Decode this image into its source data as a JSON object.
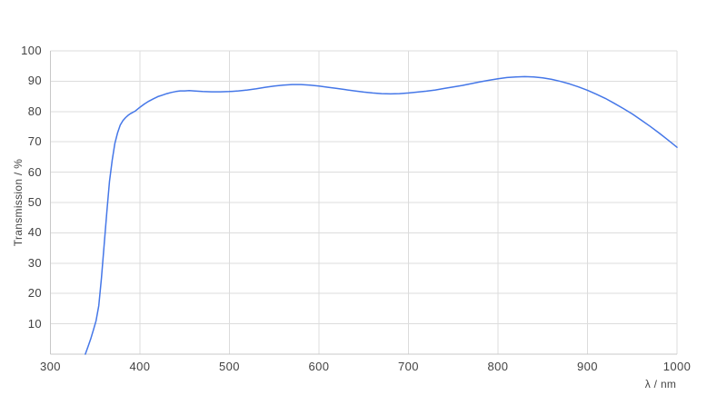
{
  "page": {
    "background": "#ffffff"
  },
  "chart_data": {
    "type": "line",
    "title": "",
    "xlabel": "λ / nm",
    "ylabel": "Transmission / %",
    "xlim": [
      300,
      1000
    ],
    "ylim": [
      0,
      100
    ],
    "x_ticks": [
      300,
      400,
      500,
      600,
      700,
      800,
      900,
      1000
    ],
    "y_ticks": [
      100,
      90,
      80,
      70,
      60,
      50,
      40,
      30,
      20,
      10
    ],
    "grid": true,
    "legend": "none",
    "colors": {
      "line": "#4577e8",
      "gridline": "#dcdcdc",
      "axis_line": "#c8c8c8",
      "tick_text": "#424242"
    },
    "series": [
      {
        "name": "Transmission",
        "x": [
          339,
          342,
          345,
          348,
          351,
          354,
          357,
          360,
          363,
          366,
          369,
          372,
          375,
          378,
          381,
          384,
          387,
          390,
          395,
          400,
          405,
          410,
          415,
          420,
          425,
          430,
          435,
          440,
          445,
          450,
          455,
          460,
          470,
          480,
          490,
          500,
          510,
          520,
          530,
          540,
          550,
          560,
          570,
          580,
          590,
          600,
          610,
          620,
          630,
          640,
          650,
          660,
          670,
          680,
          690,
          700,
          710,
          720,
          730,
          740,
          750,
          760,
          770,
          780,
          790,
          800,
          810,
          820,
          830,
          840,
          850,
          860,
          870,
          880,
          890,
          900,
          910,
          920,
          930,
          940,
          950,
          960,
          970,
          980,
          990,
          1000
        ],
        "y": [
          0,
          2.5,
          5,
          8,
          11,
          16,
          25,
          36,
          47,
          57,
          64,
          69.5,
          73,
          75.5,
          77,
          78,
          78.8,
          79.4,
          80.2,
          81.4,
          82.5,
          83.4,
          84.2,
          84.9,
          85.4,
          85.9,
          86.3,
          86.6,
          86.8,
          86.8,
          86.9,
          86.8,
          86.6,
          86.5,
          86.5,
          86.6,
          86.8,
          87.1,
          87.5,
          88.0,
          88.4,
          88.7,
          88.9,
          88.9,
          88.7,
          88.4,
          88.0,
          87.6,
          87.2,
          86.8,
          86.4,
          86.1,
          85.9,
          85.8,
          85.9,
          86.1,
          86.4,
          86.7,
          87.1,
          87.6,
          88.1,
          88.6,
          89.2,
          89.8,
          90.3,
          90.8,
          91.2,
          91.4,
          91.5,
          91.4,
          91.1,
          90.6,
          89.9,
          89.1,
          88.1,
          87.0,
          85.7,
          84.3,
          82.7,
          81.0,
          79.2,
          77.2,
          75.1,
          72.9,
          70.6,
          68.2
        ]
      }
    ]
  }
}
